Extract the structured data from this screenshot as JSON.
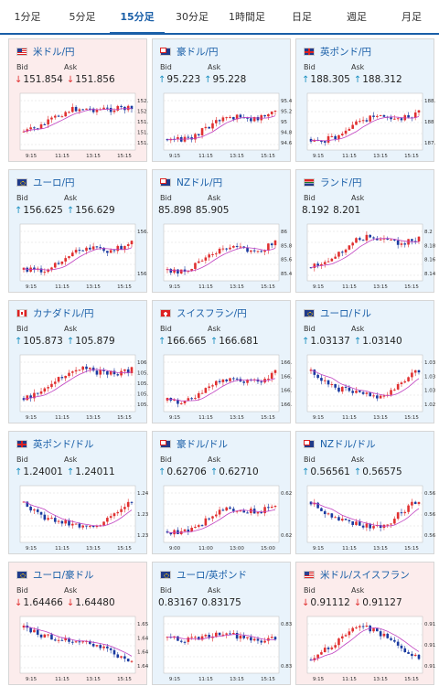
{
  "tabs": [
    {
      "label": "1分足",
      "active": false
    },
    {
      "label": "5分足",
      "active": false
    },
    {
      "label": "15分足",
      "active": true
    },
    {
      "label": "30分足",
      "active": false
    },
    {
      "label": "1時間足",
      "active": false
    },
    {
      "label": "日足",
      "active": false
    },
    {
      "label": "週足",
      "active": false
    },
    {
      "label": "月足",
      "active": false
    }
  ],
  "labels": {
    "bid": "Bid",
    "ask": "Ask"
  },
  "colors": {
    "up": "#1a8fc0",
    "down": "#e03030",
    "candle_up": "#e03030",
    "candle_down": "#1a3aa0",
    "ma": "#c040c0",
    "grid": "#cccccc"
  },
  "cards": [
    {
      "title": "米ドル/円",
      "flag": "us-flag",
      "dir": "down",
      "bid": "151.854",
      "ask": "151.856",
      "bg": "pink",
      "x_ticks": [
        "9:15",
        "11:15",
        "13:15",
        "15:15"
      ],
      "y_ticks": [
        "152.2",
        "152",
        "151.8",
        "151.6",
        "151.4"
      ],
      "shape": "down-peak"
    },
    {
      "title": "豪ドル/円",
      "flag": "au-flag",
      "dir": "up",
      "bid": "95.223",
      "ask": "95.228",
      "bg": "blue",
      "x_ticks": [
        "9:15",
        "11:15",
        "13:15",
        "15:15"
      ],
      "y_ticks": [
        "95.4",
        "95.2",
        "95",
        "94.8",
        "94.6"
      ],
      "shape": "up"
    },
    {
      "title": "英ポンド/円",
      "flag": "gb-flag",
      "dir": "up",
      "bid": "188.305",
      "ask": "188.312",
      "bg": "blue",
      "x_ticks": [
        "9:15",
        "11:15",
        "13:15",
        "15:15"
      ],
      "y_ticks": [
        "188.5",
        "188",
        "187.5"
      ],
      "shape": "up"
    },
    {
      "title": "ユーロ/円",
      "flag": "eu-flag",
      "dir": "up",
      "bid": "156.625",
      "ask": "156.629",
      "bg": "blue",
      "x_ticks": [
        "9:15",
        "11:15",
        "13:15",
        "15:15"
      ],
      "y_ticks": [
        "156.5",
        "156"
      ],
      "shape": "up"
    },
    {
      "title": "NZドル/円",
      "flag": "nz-flag",
      "dir": "none",
      "bid": "85.898",
      "ask": "85.905",
      "bg": "blue",
      "x_ticks": [
        "9:15",
        "11:15",
        "13:15",
        "15:15"
      ],
      "y_ticks": [
        "86",
        "85.8",
        "85.6",
        "85.4"
      ],
      "shape": "up"
    },
    {
      "title": "ランド/円",
      "flag": "za-flag",
      "dir": "none",
      "bid": "8.192",
      "ask": "8.201",
      "bg": "blue",
      "x_ticks": [
        "9:15",
        "11:15",
        "13:15",
        "15:15"
      ],
      "y_ticks": [
        "8.2",
        "8.18",
        "8.16",
        "8.14"
      ],
      "shape": "up-flat"
    },
    {
      "title": "カナダドル/円",
      "flag": "ca-flag",
      "dir": "up",
      "bid": "105.873",
      "ask": "105.879",
      "bg": "blue",
      "x_ticks": [
        "9:15",
        "11:15",
        "13:15",
        "15:15"
      ],
      "y_ticks": [
        "106",
        "105.8",
        "105.6",
        "105.4",
        "105.2"
      ],
      "shape": "up-flat"
    },
    {
      "title": "スイスフラン/円",
      "flag": "ch-flag",
      "dir": "up",
      "bid": "166.665",
      "ask": "166.681",
      "bg": "blue",
      "x_ticks": [
        "9:15",
        "11:15",
        "13:15",
        "15:15"
      ],
      "y_ticks": [
        "166.8",
        "166.6",
        "166.4",
        "166.2"
      ],
      "shape": "up"
    },
    {
      "title": "ユーロ/ドル",
      "flag": "eu-flag",
      "dir": "up",
      "bid": "1.03137",
      "ask": "1.03140",
      "bg": "blue",
      "x_ticks": [
        "9:15",
        "11:15",
        "13:15",
        "15:15"
      ],
      "y_ticks": [
        "1.032",
        "1.031",
        "1.03",
        "1.029"
      ],
      "shape": "valley"
    },
    {
      "title": "英ポンド/ドル",
      "flag": "gb-flag",
      "dir": "up",
      "bid": "1.24001",
      "ask": "1.24011",
      "bg": "blue",
      "x_ticks": [
        "9:15",
        "11:15",
        "13:15",
        "15:15"
      ],
      "y_ticks": [
        "1.24",
        "1.239",
        "1.238"
      ],
      "shape": "valley"
    },
    {
      "title": "豪ドル/ドル",
      "flag": "au-flag",
      "dir": "up",
      "bid": "0.62706",
      "ask": "0.62710",
      "bg": "blue",
      "x_ticks": [
        "9:00",
        "11:00",
        "13:00",
        "15:00"
      ],
      "y_ticks": [
        "0.626",
        "0.624"
      ],
      "shape": "up"
    },
    {
      "title": "NZドル/ドル",
      "flag": "nz-flag",
      "dir": "up",
      "bid": "0.56561",
      "ask": "0.56575",
      "bg": "blue",
      "x_ticks": [
        "9:15",
        "11:15",
        "13:15",
        "15:15"
      ],
      "y_ticks": [
        "0.566",
        "0.565",
        "0.564"
      ],
      "shape": "valley"
    },
    {
      "title": "ユーロ/豪ドル",
      "flag": "eu-flag",
      "dir": "down",
      "bid": "1.64466",
      "ask": "1.64480",
      "bg": "pink",
      "x_ticks": [
        "9:15",
        "11:15",
        "13:15",
        "15:15"
      ],
      "y_ticks": [
        "1.65",
        "1.648",
        "1.646",
        "1.644"
      ],
      "shape": "down"
    },
    {
      "title": "ユーロ/英ポンド",
      "flag": "eu-flag",
      "dir": "none",
      "bid": "0.83167",
      "ask": "0.83175",
      "bg": "blue",
      "x_ticks": [
        "9:15",
        "11:15",
        "13:15",
        "15:15"
      ],
      "y_ticks": [
        "0.832",
        "0.831"
      ],
      "shape": "flat-spike"
    },
    {
      "title": "米ドル/スイスフラン",
      "flag": "us-flag",
      "dir": "down",
      "bid": "0.91112",
      "ask": "0.91127",
      "bg": "pink",
      "x_ticks": [
        "9:15",
        "11:15",
        "13:15",
        "15:15"
      ],
      "y_ticks": [
        "0.912",
        "0.911",
        "0.91"
      ],
      "shape": "peak"
    }
  ]
}
